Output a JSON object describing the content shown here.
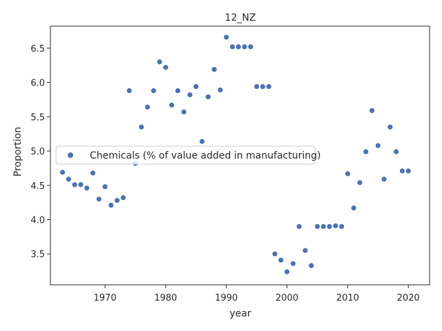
{
  "chart_data": {
    "type": "scatter",
    "title": "12_NZ",
    "xlabel": "year",
    "ylabel": "Proportion",
    "xlim": [
      1961,
      2023.5
    ],
    "ylim": [
      3.05,
      6.82
    ],
    "xticks": [
      1970,
      1980,
      1990,
      2000,
      2010,
      2020
    ],
    "yticks": [
      3.5,
      4.0,
      4.5,
      5.0,
      5.5,
      6.0,
      6.5
    ],
    "grid": false,
    "legend_position": "center-left",
    "series": [
      {
        "name": "Chemicals (% of value added in manufacturing)",
        "color": "#4c72b0",
        "x": [
          1963,
          1964,
          1965,
          1966,
          1967,
          1968,
          1969,
          1970,
          1971,
          1972,
          1973,
          1974,
          1975,
          1976,
          1977,
          1978,
          1979,
          1980,
          1981,
          1982,
          1983,
          1984,
          1985,
          1986,
          1987,
          1988,
          1989,
          1990,
          1991,
          1992,
          1993,
          1994,
          1995,
          1996,
          1997,
          1998,
          1999,
          2000,
          2001,
          2002,
          2003,
          2004,
          2005,
          2006,
          2007,
          2008,
          2009,
          2010,
          2011,
          2012,
          2013,
          2014,
          2015,
          2016,
          2017,
          2018,
          2019,
          2020
        ],
        "y": [
          4.69,
          4.59,
          4.51,
          4.51,
          4.46,
          4.68,
          4.3,
          4.48,
          4.21,
          4.28,
          4.32,
          5.88,
          4.82,
          5.35,
          5.64,
          5.88,
          6.3,
          6.22,
          5.67,
          5.88,
          5.57,
          5.82,
          5.94,
          5.14,
          5.79,
          6.19,
          5.89,
          6.66,
          6.52,
          6.52,
          6.52,
          6.52,
          5.94,
          5.94,
          5.94,
          3.5,
          3.41,
          3.24,
          3.36,
          3.9,
          3.55,
          3.33,
          3.9,
          3.9,
          3.9,
          3.91,
          3.9,
          4.67,
          4.17,
          4.54,
          4.99,
          5.59,
          5.08,
          4.59,
          5.35,
          4.99,
          4.71,
          4.71
        ]
      }
    ]
  }
}
